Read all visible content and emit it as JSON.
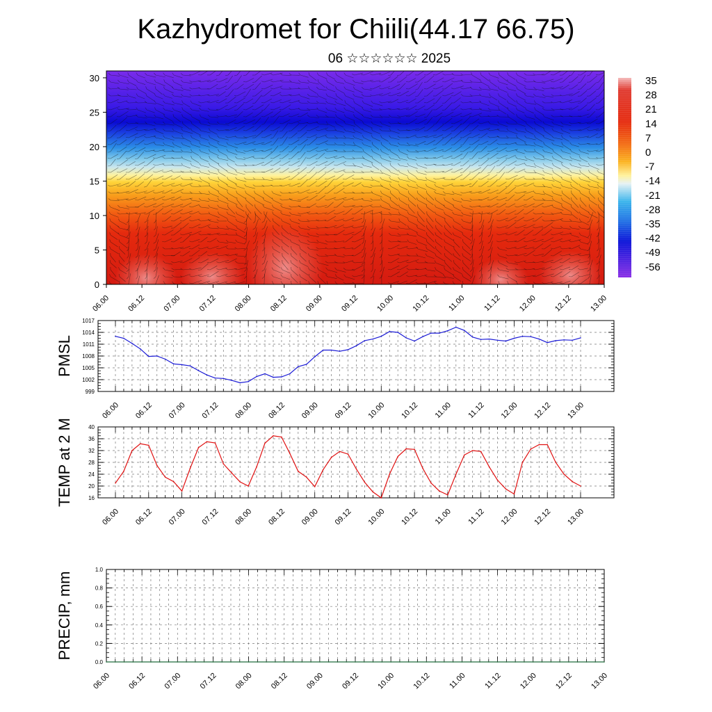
{
  "header": {
    "title": "Kazhydromet for Chiili(44.17 66.75)",
    "subtitle": "06 ☆☆☆☆☆☆ 2025"
  },
  "colors": {
    "pmsl_line": "#1a1ad6",
    "temp_line": "#e01010",
    "precip_line": "#1f6b3a"
  },
  "chart_data": [
    {
      "type": "heatmap",
      "title": "",
      "x_tick_labels": [
        "06.00",
        "06.12",
        "07.00",
        "07.12",
        "08.00",
        "08.12",
        "09.00",
        "09.12",
        "10.00",
        "10.12",
        "11.00",
        "11.12",
        "12.00",
        "12.12",
        "13.00"
      ],
      "y_ticks": [
        0,
        5,
        10,
        15,
        20,
        25,
        30
      ],
      "ylim": [
        0,
        31
      ],
      "colorbar_labels": [
        "35",
        "28",
        "21",
        "14",
        "7",
        "0",
        "-7",
        "-14",
        "-21",
        "-28",
        "-35",
        "-42",
        "-49",
        "-56"
      ],
      "overlay": "wind-vectors"
    },
    {
      "type": "line",
      "ylabel": "PMSL",
      "ylim": [
        999,
        1017
      ],
      "y_ticks": [
        999,
        1002,
        1005,
        1008,
        1011,
        1014,
        1017
      ],
      "x_tick_labels": [
        "06.00",
        "06.12",
        "07.00",
        "07.12",
        "08.00",
        "08.12",
        "09.00",
        "09.12",
        "10.00",
        "10.12",
        "11.00",
        "11.12",
        "12.00",
        "12.12",
        "13.00"
      ],
      "values": [
        1013.0,
        1012.5,
        1011.2,
        1009.8,
        1007.9,
        1008.0,
        1007.2,
        1006.0,
        1005.8,
        1005.5,
        1004.3,
        1003.2,
        1002.4,
        1002.3,
        1001.8,
        1001.2,
        1001.5,
        1002.8,
        1003.5,
        1002.6,
        1002.7,
        1003.5,
        1005.3,
        1005.9,
        1007.8,
        1009.5,
        1009.5,
        1009.2,
        1009.6,
        1010.6,
        1011.9,
        1012.3,
        1013.0,
        1014.2,
        1014.0,
        1012.6,
        1011.8,
        1012.9,
        1013.8,
        1013.8,
        1014.4,
        1015.3,
        1014.5,
        1012.8,
        1012.2,
        1012.3,
        1012.0,
        1011.8,
        1012.5,
        1013.0,
        1012.9,
        1012.3,
        1011.4,
        1011.9,
        1012.1,
        1012.0,
        1012.6
      ]
    },
    {
      "type": "line",
      "ylabel": "TEMP at 2 M",
      "ylim": [
        16,
        40
      ],
      "y_ticks": [
        16,
        20,
        24,
        28,
        32,
        36,
        40
      ],
      "x_tick_labels": [
        "06.00",
        "06.12",
        "07.00",
        "07.12",
        "08.00",
        "08.12",
        "09.00",
        "09.12",
        "10.00",
        "10.12",
        "11.00",
        "11.12",
        "12.00",
        "12.12",
        "13.00"
      ],
      "values": [
        21.0,
        25.0,
        32.0,
        34.3,
        33.8,
        27.0,
        23.0,
        21.5,
        18.3,
        26.0,
        33.0,
        35.0,
        34.6,
        27.5,
        24.4,
        21.4,
        20.0,
        26.5,
        34.5,
        37.0,
        36.6,
        31.0,
        25.0,
        23.0,
        19.8,
        25.5,
        29.7,
        31.7,
        30.8,
        25.8,
        21.3,
        18.0,
        16.0,
        24.0,
        30.0,
        32.6,
        32.4,
        26.0,
        21.0,
        18.3,
        17.0,
        24.0,
        30.5,
        32.0,
        31.7,
        26.5,
        22.0,
        19.0,
        17.3,
        28.0,
        32.5,
        34.0,
        34.0,
        28.0,
        24.0,
        21.5,
        20.0
      ]
    },
    {
      "type": "line",
      "ylabel": "PRECIP, mm",
      "ylim": [
        0,
        1
      ],
      "y_tick_labels": [
        "0.0",
        "0.2",
        "0.4",
        "0.6",
        "0.8",
        "1.0"
      ],
      "x_tick_labels": [
        "06.00",
        "06.12",
        "07.00",
        "07.12",
        "08.00",
        "08.12",
        "09.00",
        "09.12",
        "10.00",
        "10.12",
        "11.00",
        "11.12",
        "12.00",
        "12.12",
        "13.00"
      ],
      "values": [
        0,
        0,
        0,
        0,
        0,
        0,
        0,
        0,
        0,
        0,
        0,
        0,
        0,
        0,
        0,
        0,
        0,
        0,
        0,
        0,
        0,
        0,
        0,
        0,
        0,
        0,
        0,
        0,
        0,
        0,
        0,
        0,
        0,
        0,
        0,
        0,
        0,
        0,
        0,
        0,
        0,
        0,
        0,
        0,
        0,
        0,
        0,
        0,
        0,
        0,
        0,
        0,
        0,
        0,
        0,
        0,
        0
      ]
    }
  ]
}
